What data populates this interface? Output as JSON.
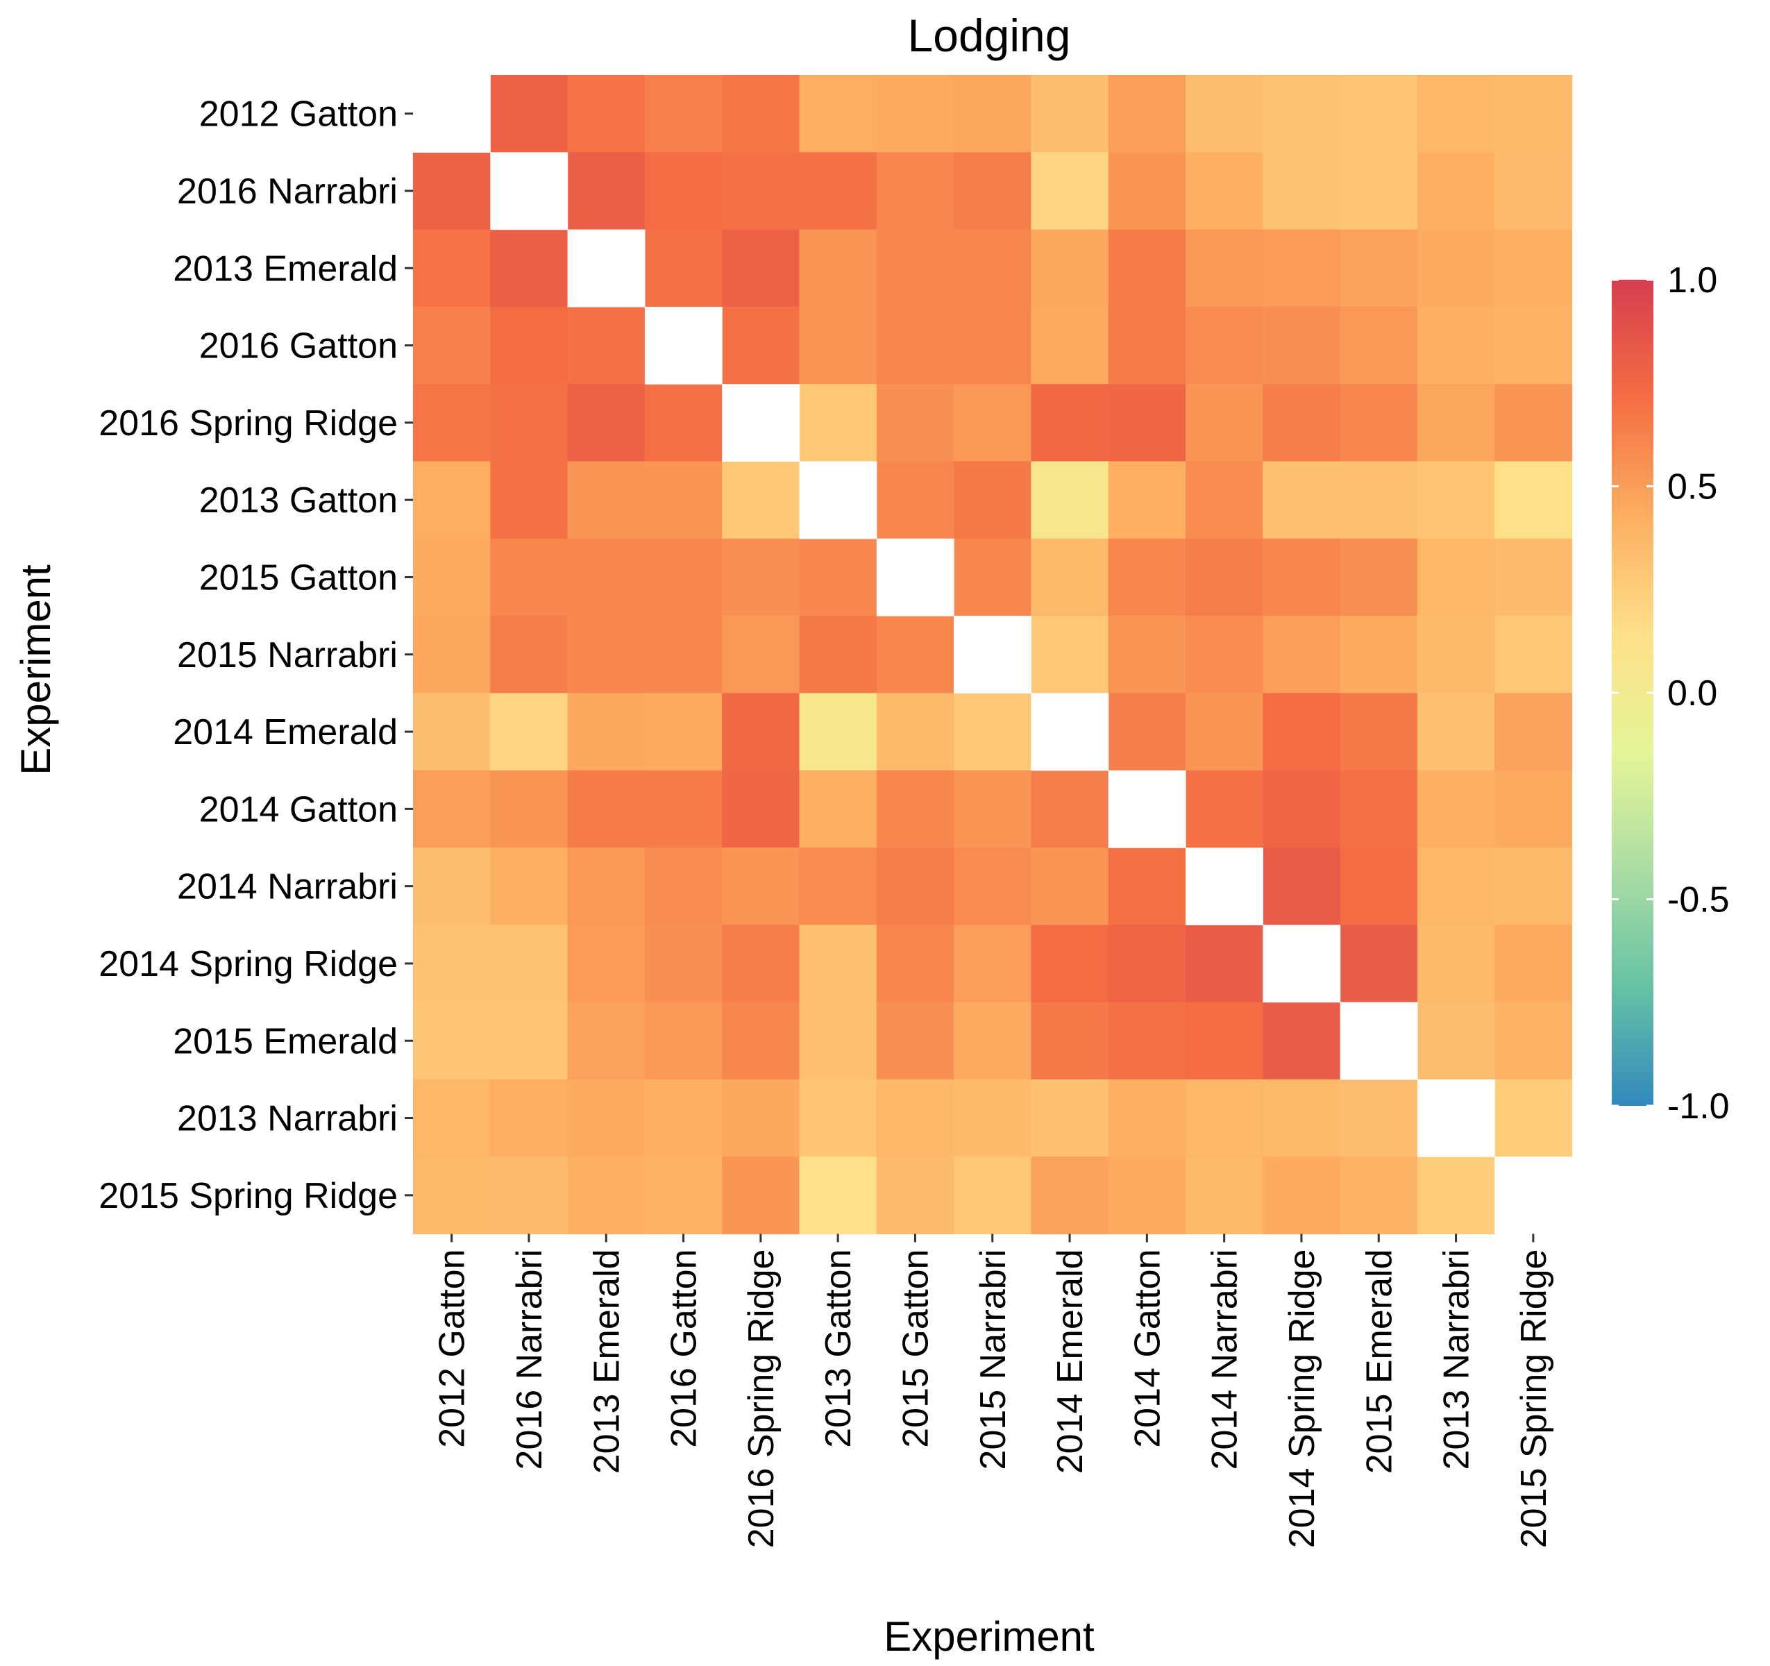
{
  "chart_data": {
    "type": "heatmap",
    "title": "Lodging",
    "xlabel": "Experiment",
    "ylabel": "Experiment",
    "categories": [
      "2012 Gatton",
      "2016 Narrabri",
      "2013 Emerald",
      "2016 Gatton",
      "2016 Spring Ridge",
      "2013 Gatton",
      "2015 Gatton",
      "2015 Narrabri",
      "2014 Emerald",
      "2014 Gatton",
      "2014 Narrabri",
      "2014 Spring Ridge",
      "2015 Emerald",
      "2013 Narrabri",
      "2015 Spring Ridge"
    ],
    "values": [
      [
        null,
        0.78,
        0.69,
        0.63,
        0.68,
        0.43,
        0.44,
        0.45,
        0.33,
        0.5,
        0.34,
        0.31,
        0.3,
        0.38,
        0.36
      ],
      [
        0.78,
        null,
        0.8,
        0.72,
        0.7,
        0.7,
        0.6,
        0.64,
        0.2,
        0.54,
        0.42,
        0.31,
        0.3,
        0.43,
        0.35
      ],
      [
        0.69,
        0.8,
        null,
        0.7,
        0.78,
        0.54,
        0.6,
        0.6,
        0.45,
        0.65,
        0.52,
        0.51,
        0.48,
        0.44,
        0.42
      ],
      [
        0.63,
        0.72,
        0.7,
        null,
        0.7,
        0.54,
        0.6,
        0.6,
        0.44,
        0.65,
        0.58,
        0.56,
        0.52,
        0.42,
        0.4
      ],
      [
        0.68,
        0.7,
        0.78,
        0.7,
        null,
        0.28,
        0.56,
        0.52,
        0.74,
        0.75,
        0.54,
        0.64,
        0.6,
        0.46,
        0.54
      ],
      [
        0.43,
        0.7,
        0.54,
        0.54,
        0.28,
        null,
        0.6,
        0.66,
        0.05,
        0.42,
        0.58,
        0.32,
        0.32,
        0.3,
        0.15
      ],
      [
        0.44,
        0.6,
        0.6,
        0.6,
        0.56,
        0.6,
        null,
        0.6,
        0.36,
        0.6,
        0.64,
        0.6,
        0.56,
        0.38,
        0.35
      ],
      [
        0.45,
        0.64,
        0.6,
        0.6,
        0.52,
        0.66,
        0.6,
        null,
        0.28,
        0.54,
        0.58,
        0.5,
        0.44,
        0.36,
        0.28
      ],
      [
        0.33,
        0.2,
        0.45,
        0.44,
        0.74,
        0.05,
        0.36,
        0.28,
        null,
        0.64,
        0.54,
        0.72,
        0.66,
        0.32,
        0.48
      ],
      [
        0.5,
        0.54,
        0.65,
        0.65,
        0.75,
        0.42,
        0.6,
        0.54,
        0.64,
        null,
        0.7,
        0.76,
        0.7,
        0.42,
        0.44
      ],
      [
        0.34,
        0.42,
        0.52,
        0.58,
        0.54,
        0.58,
        0.64,
        0.58,
        0.54,
        0.7,
        null,
        0.82,
        0.72,
        0.38,
        0.36
      ],
      [
        0.31,
        0.31,
        0.51,
        0.56,
        0.64,
        0.32,
        0.6,
        0.5,
        0.72,
        0.76,
        0.82,
        null,
        0.82,
        0.36,
        0.44
      ],
      [
        0.3,
        0.3,
        0.48,
        0.52,
        0.6,
        0.32,
        0.56,
        0.44,
        0.66,
        0.7,
        0.72,
        0.82,
        null,
        0.34,
        0.4
      ],
      [
        0.38,
        0.43,
        0.44,
        0.42,
        0.46,
        0.3,
        0.38,
        0.36,
        0.32,
        0.42,
        0.38,
        0.36,
        0.34,
        null,
        0.26
      ],
      [
        0.36,
        0.35,
        0.42,
        0.4,
        0.54,
        0.15,
        0.35,
        0.28,
        0.48,
        0.44,
        0.36,
        0.44,
        0.4,
        0.26,
        null
      ]
    ],
    "missing_cells": [
      {
        "row": "2012 Gatton",
        "col": "2012 Gatton"
      },
      {
        "row": "2015 Spring Ridge",
        "col": "2015 Spring Ridge"
      }
    ],
    "diagonal_white": true,
    "legend": {
      "position": "right",
      "min": -1.0,
      "max": 1.0,
      "ticks": [
        1.0,
        0.5,
        0.0,
        -0.5,
        -1.0
      ],
      "tick_labels": [
        "1.0",
        "0.5",
        "0.0",
        "-0.5",
        "-1.0"
      ],
      "colors": [
        "#d53e4f",
        "#f46d43",
        "#fdae61",
        "#fee08b",
        "#e6f598",
        "#abdda4",
        "#66c2a5",
        "#3288bd"
      ]
    }
  }
}
